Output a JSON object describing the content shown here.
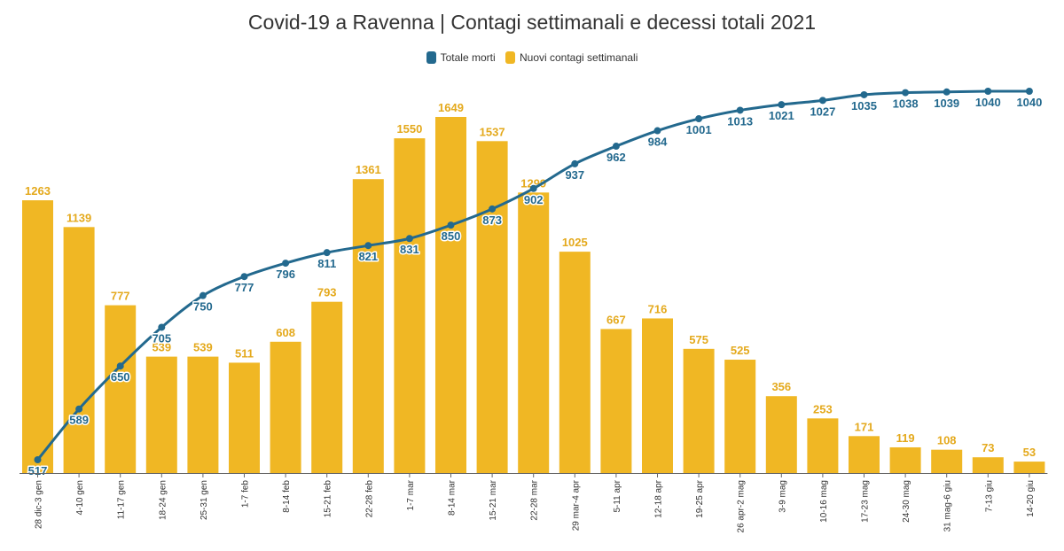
{
  "chart_data": {
    "type": "bar",
    "title": "Covid-19 a Ravenna | Contagi settimanali e decessi totali 2021",
    "xlabel": "",
    "ylabel": "",
    "legend_position": "top-center",
    "grid": false,
    "colors": {
      "bar": "#F0B724",
      "line": "#23698E"
    },
    "categories": [
      "28 dic-3 gen",
      "4-10 gen",
      "11-17 gen",
      "18-24 gen",
      "25-31 gen",
      "1-7 feb",
      "8-14 feb",
      "15-21 feb",
      "22-28 feb",
      "1-7 mar",
      "8-14 mar",
      "15-21 mar",
      "22-28 mar",
      "29 mar-4 apr",
      "5-11 apr",
      "12-18 apr",
      "19-25 apr",
      "26 apr-2 mag",
      "3-9 mag",
      "10-16 mag",
      "17-23 mag",
      "24-30 mag",
      "31 mag-6 giu",
      "7-13 giu",
      "14-20 giu"
    ],
    "series": [
      {
        "name": "Totale morti",
        "type": "line",
        "values": [
          517,
          589,
          650,
          705,
          750,
          777,
          796,
          811,
          821,
          831,
          850,
          873,
          902,
          937,
          962,
          984,
          1001,
          1013,
          1021,
          1027,
          1035,
          1038,
          1039,
          1040,
          1040
        ]
      },
      {
        "name": "Nuovi contagi settimanali",
        "type": "bar",
        "values": [
          1263,
          1139,
          777,
          539,
          539,
          511,
          608,
          793,
          1361,
          1550,
          1649,
          1537,
          1299,
          1025,
          667,
          716,
          575,
          525,
          356,
          253,
          171,
          119,
          108,
          73,
          53
        ]
      }
    ]
  }
}
